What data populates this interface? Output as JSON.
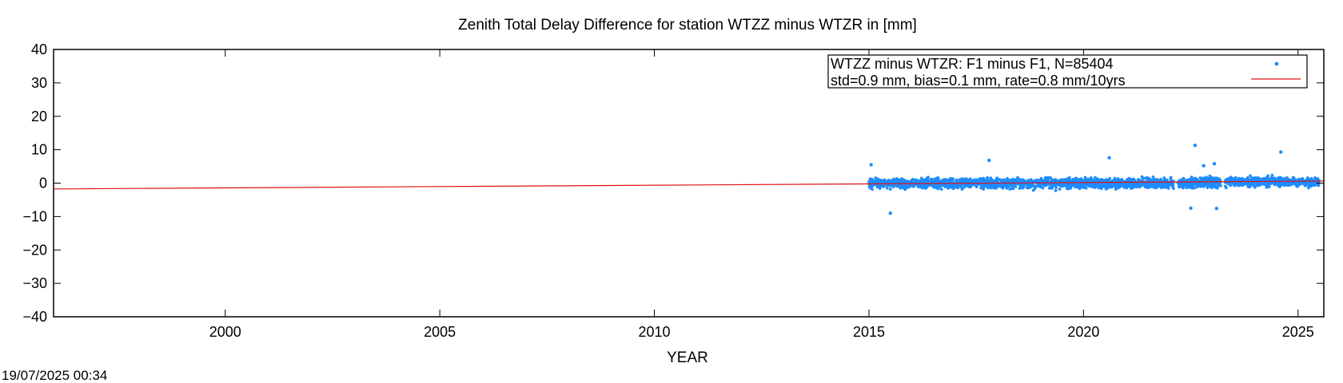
{
  "chart_data": {
    "type": "scatter",
    "title": "Zenith Total Delay Difference for station WTZZ minus WTZR in [mm]",
    "xlabel": "YEAR",
    "ylabel": "",
    "xlim": [
      1996.0,
      2025.6
    ],
    "ylim": [
      -40,
      40
    ],
    "x_ticks": [
      2000,
      2005,
      2010,
      2015,
      2020,
      2025
    ],
    "y_ticks": [
      40,
      30,
      20,
      10,
      0,
      -10,
      -20,
      -30,
      -40
    ],
    "x_tick_labels": [
      "2000",
      "2005",
      "2010",
      "2015",
      "2020",
      "2025"
    ],
    "y_tick_labels": [
      "40",
      "30",
      "20",
      "10",
      "0",
      "−10",
      "−20",
      "−30",
      "−40"
    ],
    "grid": false,
    "legend_position": "top-right",
    "legend": {
      "line1": "WTZZ minus WTZR: F1 minus F1, N=85404",
      "line2": "std=0.9 mm, bias=0.1 mm, rate=0.8 mm/10yrs"
    },
    "series": [
      {
        "type": "scatter",
        "color": "#1e8cff",
        "data_segments": [
          {
            "x_start": 2015.0,
            "x_end": 2022.1,
            "mean": 0.0,
            "spread": 1.8
          },
          {
            "x_start": 2022.2,
            "x_end": 2023.2,
            "mean": 0.2,
            "spread": 1.9
          },
          {
            "x_start": 2023.3,
            "x_end": 2025.5,
            "mean": 0.4,
            "spread": 1.6
          }
        ],
        "outliers": [
          {
            "x": 2015.05,
            "y": 5.5
          },
          {
            "x": 2015.5,
            "y": -9.0
          },
          {
            "x": 2017.8,
            "y": 6.8
          },
          {
            "x": 2020.6,
            "y": 7.6
          },
          {
            "x": 2022.6,
            "y": 11.3
          },
          {
            "x": 2022.8,
            "y": 5.2
          },
          {
            "x": 2023.05,
            "y": 5.8
          },
          {
            "x": 2022.5,
            "y": -7.5
          },
          {
            "x": 2023.1,
            "y": -7.6
          },
          {
            "x": 2024.6,
            "y": 9.3
          }
        ]
      },
      {
        "type": "line",
        "color": "#e01010",
        "x": [
          1996.0,
          2025.6
        ],
        "y": [
          -1.75,
          0.62
        ]
      }
    ]
  },
  "timestamp": "19/07/2025 00:34"
}
